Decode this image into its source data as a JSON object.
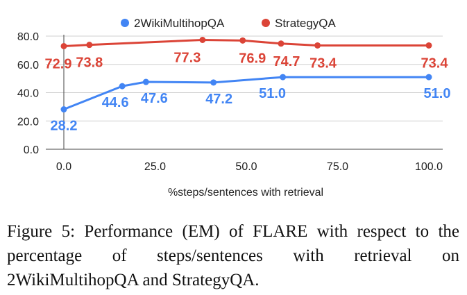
{
  "chart_data": {
    "type": "line",
    "xlabel": "%steps/sentences with retrieval",
    "ylabel": "",
    "xlim": [
      0,
      100
    ],
    "ylim": [
      0,
      80
    ],
    "x_ticks": [
      "0.0",
      "25.0",
      "50.0",
      "75.0",
      "100.0"
    ],
    "y_ticks": [
      "0.0",
      "20.0",
      "40.0",
      "60.0",
      "80.0"
    ],
    "grid": "horizontal",
    "legend_position": "top-center",
    "series": [
      {
        "name": "2WikiMultihopQA",
        "color": "#4285f4",
        "x": [
          0.0,
          16.0,
          22.5,
          41.0,
          60.0,
          100.0
        ],
        "y": [
          28.2,
          44.6,
          47.6,
          47.2,
          51.0,
          51.0
        ],
        "labels": [
          "28.2",
          "44.6",
          "47.6",
          "47.2",
          "51.0",
          "51.0"
        ]
      },
      {
        "name": "StrategyQA",
        "color": "#db4437",
        "x": [
          0.0,
          7.0,
          38.0,
          49.0,
          59.5,
          69.5,
          100.0
        ],
        "y": [
          72.9,
          73.8,
          77.3,
          76.9,
          74.7,
          73.4,
          73.4
        ],
        "labels": [
          "72.9",
          "73.8",
          "77.3",
          "76.9",
          "74.7",
          "73.4",
          "73.4"
        ]
      }
    ]
  },
  "caption": "Figure 5: Performance (EM) of FLARE with respect to the percentage of steps/sentences with retrieval on 2WikiMultihopQA and StrategyQA."
}
